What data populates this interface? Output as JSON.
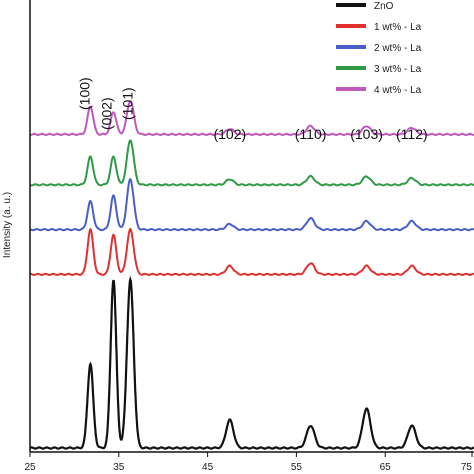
{
  "chart_data": {
    "type": "line",
    "xlabel": "",
    "ylabel": "Intensity (a. u.)",
    "xlim": [
      25,
      75
    ],
    "x_ticks": [
      "25",
      "35",
      "45",
      "55",
      "65",
      "75"
    ],
    "x_tick_values": [
      25,
      35,
      45,
      55,
      65,
      75
    ],
    "grid": false,
    "legend_position": "top-right",
    "legend": [
      "ZnO",
      "1 wt% - La",
      "2 wt% - La",
      "3 wt% - La",
      "4 wt% - La"
    ],
    "peaks": [
      {
        "label": "(100)",
        "x": 31.8
      },
      {
        "label": "(002)",
        "x": 34.4
      },
      {
        "label": "(101)",
        "x": 36.3
      },
      {
        "label": "(102)",
        "x": 47.5
      },
      {
        "label": "(110)",
        "x": 56.6
      },
      {
        "label": "(103)",
        "x": 62.9
      },
      {
        "label": "(112)",
        "x": 68.0
      }
    ],
    "series": [
      {
        "name": "ZnO",
        "color": "#111111",
        "baseline": 0,
        "peak_heights": [
          15,
          30,
          30,
          5,
          4,
          7,
          4
        ]
      },
      {
        "name": "1 wt% - La",
        "color": "#e03030",
        "baseline": 31,
        "peak_heights": [
          8,
          7,
          8,
          1.5,
          2,
          1.5,
          1.5
        ]
      },
      {
        "name": "2 wt% - La",
        "color": "#4a5ec8",
        "baseline": 39,
        "peak_heights": [
          5,
          6,
          9,
          1,
          2,
          1.5,
          1.5
        ]
      },
      {
        "name": "3 wt% - La",
        "color": "#2f9a46",
        "baseline": 47,
        "peak_heights": [
          5,
          5,
          8,
          1,
          1.5,
          1.5,
          1.2
        ]
      },
      {
        "name": "4 wt% - La",
        "color": "#c058c0",
        "baseline": 56,
        "peak_heights": [
          5,
          4,
          6,
          1,
          1.5,
          1.5,
          1.2
        ]
      }
    ]
  }
}
